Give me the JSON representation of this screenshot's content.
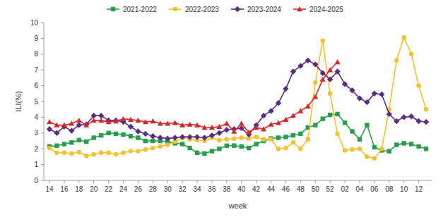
{
  "chart_data": {
    "type": "line",
    "x_label": "week",
    "y_label": "ILI(%)",
    "categories": [
      "14",
      null,
      "16",
      null,
      "18",
      null,
      "20",
      null,
      "22",
      null,
      "24",
      null,
      "26",
      null,
      "28",
      null,
      "30",
      null,
      "32",
      null,
      "34",
      null,
      "36",
      null,
      "38",
      null,
      "40",
      null,
      "42",
      null,
      "44",
      null,
      "46",
      null,
      "48",
      null,
      "50",
      null,
      "52",
      null,
      "02",
      null,
      "04",
      null,
      "06",
      null,
      "08",
      null,
      "10",
      null,
      "12",
      null
    ],
    "series": [
      {
        "name": "2021-2022",
        "color": "#2a9d4b",
        "marker": "square",
        "values": [
          2.15,
          2.2,
          2.3,
          2.4,
          2.55,
          2.45,
          2.7,
          2.85,
          3.0,
          2.95,
          2.9,
          2.8,
          2.7,
          2.5,
          2.5,
          2.5,
          2.45,
          2.35,
          2.3,
          2.05,
          1.75,
          1.7,
          1.85,
          2.0,
          2.2,
          2.2,
          2.15,
          2.05,
          2.3,
          2.5,
          2.65,
          2.7,
          2.75,
          2.85,
          2.95,
          3.35,
          3.5,
          3.9,
          4.15,
          4.2,
          3.65,
          3.1,
          2.6,
          3.5,
          2.1,
          1.9,
          1.85,
          2.25,
          2.35,
          2.3,
          2.15,
          2.0
        ]
      },
      {
        "name": "2022-2023",
        "color": "#f2c12e",
        "marker": "circle",
        "values": [
          2.05,
          1.75,
          1.75,
          1.7,
          1.8,
          1.55,
          1.65,
          1.75,
          1.75,
          1.65,
          1.75,
          1.85,
          1.85,
          1.95,
          2.05,
          2.15,
          2.25,
          2.45,
          2.7,
          2.6,
          2.55,
          2.5,
          2.7,
          2.55,
          2.6,
          2.65,
          2.7,
          2.65,
          2.75,
          2.6,
          2.6,
          2.0,
          2.05,
          2.4,
          2.0,
          2.6,
          6.2,
          8.85,
          5.5,
          2.95,
          1.9,
          1.95,
          2.0,
          1.5,
          1.4,
          2.0,
          4.5,
          7.6,
          9.05,
          8.0,
          6.0,
          4.5
        ]
      },
      {
        "name": "2023-2024",
        "color": "#5b2c83",
        "marker": "diamond",
        "values": [
          3.25,
          3.0,
          3.4,
          3.15,
          3.5,
          3.55,
          4.1,
          4.1,
          3.8,
          3.8,
          3.7,
          3.4,
          3.1,
          2.95,
          2.8,
          2.7,
          2.65,
          2.7,
          2.75,
          2.75,
          2.75,
          2.7,
          2.85,
          3.0,
          3.2,
          3.25,
          3.3,
          2.9,
          3.5,
          4.1,
          4.4,
          4.9,
          5.8,
          6.9,
          7.25,
          7.6,
          7.35,
          6.8,
          6.4,
          6.9,
          6.1,
          5.7,
          5.2,
          4.95,
          5.5,
          5.45,
          4.2,
          3.75,
          4.0,
          4.05,
          3.75,
          3.7
        ]
      },
      {
        "name": "2024-2025",
        "color": "#d62728",
        "marker": "triangle",
        "values": [
          3.7,
          3.5,
          3.5,
          3.6,
          3.8,
          3.5,
          3.8,
          3.8,
          3.7,
          3.75,
          3.9,
          3.85,
          3.8,
          3.7,
          3.75,
          3.6,
          3.6,
          3.65,
          3.5,
          3.55,
          3.5,
          3.35,
          3.35,
          3.4,
          3.6,
          3.1,
          3.6,
          3.05,
          3.35,
          3.25,
          3.55,
          3.65,
          3.85,
          4.1,
          4.4,
          4.7,
          5.3,
          6.4,
          7.0,
          7.5,
          null,
          null,
          null,
          null,
          null,
          null,
          null,
          null,
          null,
          null,
          null,
          null
        ]
      }
    ],
    "ylim": [
      0,
      10
    ],
    "yticks": [
      0,
      1,
      2,
      3,
      4,
      5,
      6,
      7,
      8,
      9,
      10
    ],
    "grid": false,
    "legend": "top"
  }
}
